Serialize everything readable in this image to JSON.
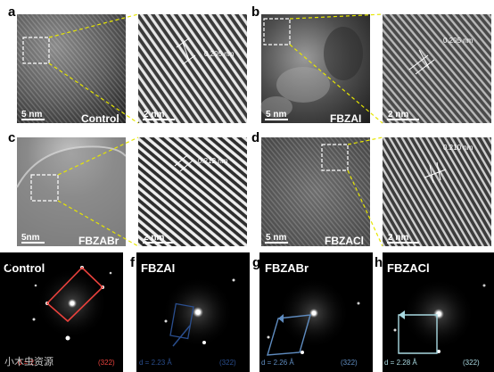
{
  "panels": {
    "a": {
      "letter": "a",
      "sample": "Control",
      "scale_left": "5 nm",
      "scale_right": "2 nm",
      "spacing": "0.205 nm"
    },
    "b": {
      "letter": "b",
      "sample": "FBZAI",
      "scale_left": "5 nm",
      "scale_right": "2 nm",
      "spacing": "0.205 nm"
    },
    "c": {
      "letter": "c",
      "sample": "FBZABr",
      "scale_left": "5nm",
      "scale_right": "2 nm",
      "spacing": "0.212 nm"
    },
    "d": {
      "letter": "d",
      "sample": "FBZACl",
      "scale_left": "5 nm",
      "scale_right": "2 nm",
      "spacing": "0.210 nm"
    },
    "e": {
      "letter": "e",
      "sample": "Control",
      "d_label": "d = 2.",
      "index": "(322)",
      "accent": "#e8413c"
    },
    "f": {
      "letter": "f",
      "sample": "FBZAI",
      "d_label": "d = 2.23 Å",
      "index": "(322)",
      "accent": "#2a4e8e"
    },
    "g": {
      "letter": "g",
      "sample": "FBZABr",
      "d_label": "d = 2.26 Å",
      "index": "(322)",
      "accent": "#5f8cc0"
    },
    "h": {
      "letter": "h",
      "sample": "FBZACl",
      "d_label": "d = 2.28 Å",
      "index": "(322)",
      "accent": "#a8d8e0"
    }
  },
  "watermark": "小木虫资源",
  "colors": {
    "zoom_box": "#ffffff",
    "connector": "#e6e600",
    "background": "#ffffff"
  }
}
